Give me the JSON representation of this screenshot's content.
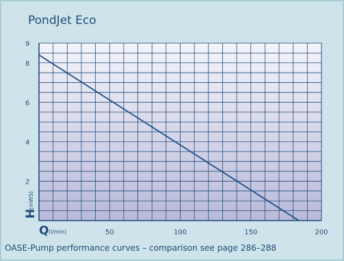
{
  "chart_data": {
    "type": "line",
    "title": "PondJet Eco",
    "xlabel": "Q",
    "xunit": "(l/min)",
    "ylabel": "H",
    "yunit": "(mWS)",
    "xlim": [
      0,
      200
    ],
    "ylim": [
      0,
      9
    ],
    "xticks": [
      50,
      100,
      150,
      200
    ],
    "yticks": [
      2,
      4,
      6,
      8,
      9
    ],
    "grid": true,
    "series": [
      {
        "color": "#1c4f84",
        "x": [
          0,
          184
        ],
        "y": [
          8.4,
          0
        ]
      }
    ]
  },
  "footer": "OASE-Pump performance curves – comparison see page 286–288",
  "colors": {
    "frame": "#cfe4ea",
    "plot_top": "#f4f4fb",
    "plot_bottom": "#b9bad9",
    "grid": "#1f4b7a",
    "line": "#1c4f84",
    "text": "#1f4b7a"
  }
}
